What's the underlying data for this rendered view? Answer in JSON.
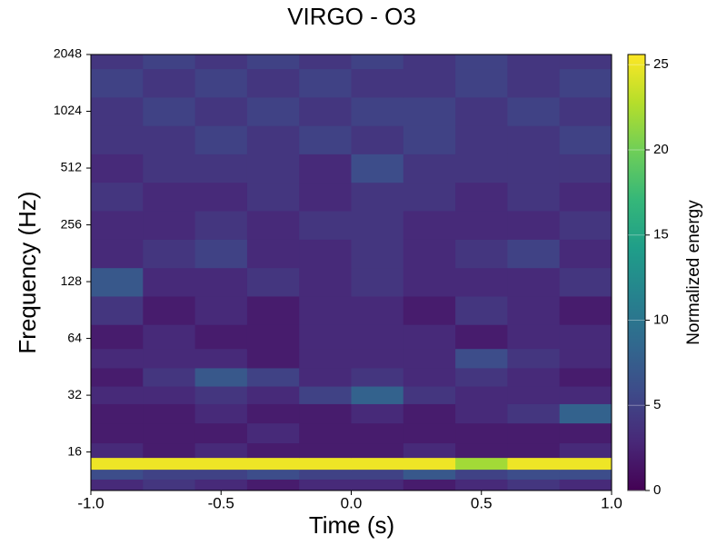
{
  "chart_data": {
    "type": "heatmap",
    "title": "VIRGO - O3",
    "x_label": "Time (s)",
    "y_label": "Frequency (Hz)",
    "colorbar_label": "Normalized energy",
    "colormap": "viridis",
    "y_scale": "log2",
    "x": [
      -0.9,
      -0.7,
      -0.5,
      -0.3,
      -0.1,
      0.1,
      0.3,
      0.5,
      0.7,
      0.9
    ],
    "y": [
      11,
      12,
      14,
      16,
      20,
      26,
      32,
      40,
      50,
      64,
      90,
      128,
      180,
      256,
      362,
      512,
      724,
      1024,
      1448,
      2048
    ],
    "z": [
      [
        3,
        4,
        3,
        2,
        3,
        3,
        2,
        3,
        4,
        3
      ],
      [
        6,
        5,
        5,
        6,
        5,
        5,
        7,
        5,
        6,
        6
      ],
      [
        25,
        25,
        25,
        25,
        25,
        25,
        25,
        22,
        25,
        25
      ],
      [
        3,
        2,
        3,
        2,
        2,
        2,
        3,
        2,
        2,
        3
      ],
      [
        2,
        2,
        2,
        3,
        2,
        2,
        2,
        2,
        2,
        2
      ],
      [
        2,
        2,
        3,
        2,
        2,
        3,
        2,
        3,
        4,
        8
      ],
      [
        3,
        3,
        4,
        3,
        5,
        8,
        4,
        3,
        3,
        3
      ],
      [
        2,
        4,
        7,
        5,
        3,
        4,
        3,
        4,
        3,
        2
      ],
      [
        3,
        3,
        3,
        2,
        3,
        3,
        3,
        6,
        4,
        3
      ],
      [
        2,
        3,
        2,
        2,
        3,
        3,
        3,
        2,
        3,
        3
      ],
      [
        4,
        2,
        3,
        2,
        3,
        3,
        2,
        4,
        3,
        2
      ],
      [
        7,
        3,
        3,
        4,
        3,
        4,
        3,
        3,
        3,
        4
      ],
      [
        3,
        4,
        5,
        3,
        3,
        4,
        3,
        4,
        5,
        3
      ],
      [
        3,
        3,
        4,
        3,
        4,
        4,
        3,
        3,
        3,
        4
      ],
      [
        4,
        3,
        3,
        4,
        3,
        4,
        4,
        3,
        4,
        3
      ],
      [
        3,
        4,
        4,
        4,
        3,
        6,
        4,
        4,
        4,
        4
      ],
      [
        4,
        4,
        5,
        4,
        5,
        4,
        5,
        4,
        4,
        5
      ],
      [
        4,
        5,
        4,
        5,
        4,
        5,
        5,
        4,
        5,
        4
      ],
      [
        5,
        4,
        5,
        4,
        5,
        4,
        4,
        5,
        4,
        5
      ],
      [
        4,
        5,
        4,
        5,
        4,
        5,
        4,
        5,
        4,
        4
      ]
    ],
    "xlim": [
      -1.0,
      1.0
    ],
    "xticks": [
      {
        "value": -1.0,
        "label": "-1.0"
      },
      {
        "value": -0.5,
        "label": "-0.5"
      },
      {
        "value": 0.0,
        "label": "0.0"
      },
      {
        "value": 0.5,
        "label": "0.5"
      },
      {
        "value": 1.0,
        "label": "1.0"
      }
    ],
    "ylim": [
      10,
      2048
    ],
    "yticks": [
      16,
      32,
      64,
      128,
      256,
      512,
      1024,
      2048
    ],
    "clim": [
      0,
      25.6
    ],
    "cticks": [
      0,
      5,
      10,
      15,
      20,
      25
    ]
  }
}
